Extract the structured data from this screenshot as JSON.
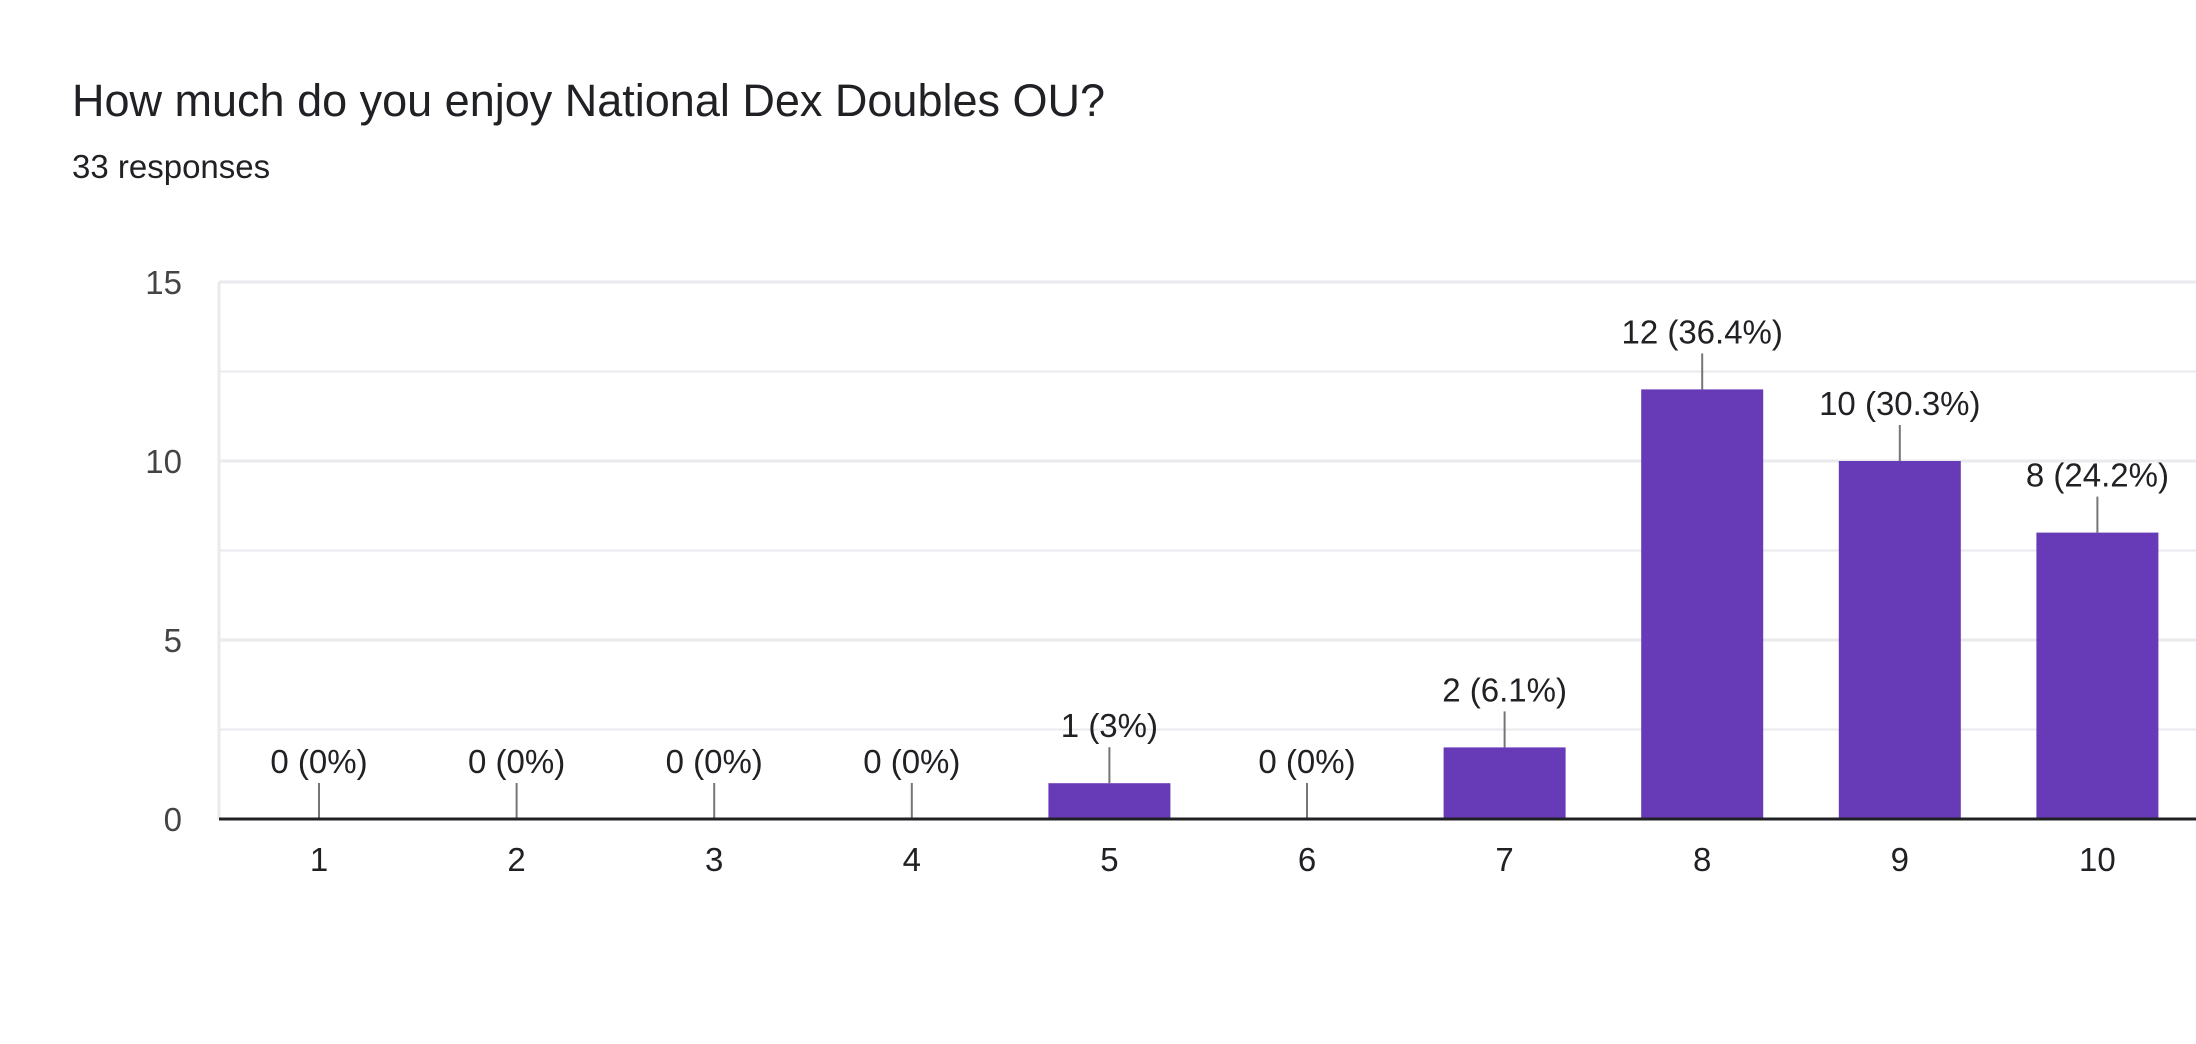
{
  "header": {
    "title": "How much do you enjoy National Dex Doubles OU?",
    "subtitle": "33 responses"
  },
  "colors": {
    "bar": "#673ab7",
    "grid": "#e8eaed",
    "axis": "#202124",
    "label": "#202124",
    "tick": "#444444",
    "leader": "#757575"
  },
  "chart_data": {
    "type": "bar",
    "categories": [
      "1",
      "2",
      "3",
      "4",
      "5",
      "6",
      "7",
      "8",
      "9",
      "10"
    ],
    "values": [
      0,
      0,
      0,
      0,
      1,
      0,
      2,
      12,
      10,
      8
    ],
    "data_labels": [
      "0 (0%)",
      "0 (0%)",
      "0 (0%)",
      "0 (0%)",
      "1 (3%)",
      "0 (0%)",
      "2 (6.1%)",
      "12 (36.4%)",
      "10 (30.3%)",
      "8 (24.2%)"
    ],
    "ylim": [
      0,
      15
    ],
    "yticks": [
      "0",
      "5",
      "10",
      "15"
    ],
    "grid": true,
    "minor_grid": true
  }
}
